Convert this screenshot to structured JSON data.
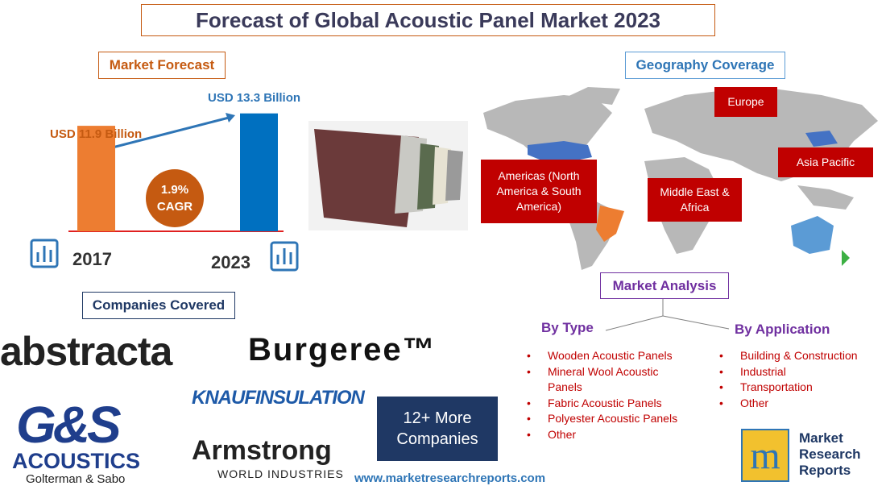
{
  "header": {
    "title": "Forecast of Global Acoustic Panel Market 2023"
  },
  "forecast": {
    "heading": "Market Forecast",
    "bars": [
      {
        "year": "2017",
        "label": "USD 11.9 Billion",
        "value": 11.9,
        "color": "#ed7d31"
      },
      {
        "year": "2023",
        "label": "USD 13.3 Billion",
        "value": 13.3,
        "color": "#0070c0"
      }
    ],
    "cagr": {
      "value": "1.9%",
      "label": "CAGR"
    }
  },
  "geography": {
    "heading": "Geography Coverage",
    "regions": [
      "Europe",
      "Asia Pacific",
      "Americas (North America & South America)",
      "Middle East & Africa"
    ]
  },
  "analysis": {
    "heading": "Market Analysis",
    "by_type": {
      "title": "By Type",
      "items": [
        "Wooden Acoustic Panels",
        "Mineral Wool Acoustic Panels",
        "Fabric Acoustic Panels",
        "Polyester Acoustic Panels",
        "Other"
      ]
    },
    "by_application": {
      "title": "By Application",
      "items": [
        "Building & Construction",
        "Industrial",
        "Transportation",
        "Other"
      ]
    }
  },
  "companies": {
    "heading": "Companies Covered",
    "logos": [
      "abstracta",
      "Burgeree™",
      "G&S",
      "ACOUSTICS",
      "Golterman & Sabo",
      "KNAUFINSULATION",
      "Armstrong",
      "WORLD INDUSTRIES"
    ],
    "more": "12+ More Companies"
  },
  "footer": {
    "website": "www.marketresearchreports.com",
    "brand": [
      "Market",
      "Research",
      "Reports"
    ]
  }
}
